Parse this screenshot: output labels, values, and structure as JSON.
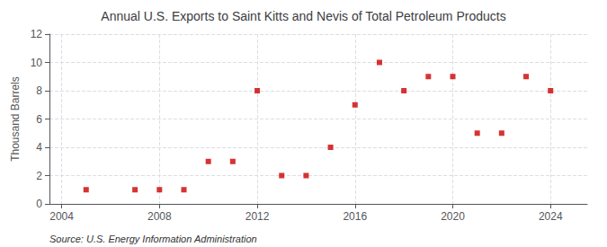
{
  "chart_data": {
    "type": "scatter",
    "title": "Annual U.S. Exports to Saint Kitts and Nevis of Total Petroleum Products",
    "ylabel": "Thousand Barrels",
    "source": "Source: U.S. Energy Information Administration",
    "x": [
      2005,
      2007,
      2008,
      2009,
      2010,
      2011,
      2012,
      2013,
      2014,
      2015,
      2016,
      2017,
      2018,
      2019,
      2020,
      2021,
      2022,
      2023,
      2024
    ],
    "values": [
      1,
      1,
      1,
      1,
      3,
      3,
      8,
      2,
      2,
      4,
      7,
      10,
      8,
      9,
      9,
      5,
      5,
      9,
      8
    ],
    "color": "#cc0000",
    "marker": "square",
    "xlim": [
      2003.5,
      2025.5
    ],
    "xticks": [
      2004,
      2008,
      2012,
      2016,
      2020,
      2024
    ],
    "ylim": [
      0,
      12
    ],
    "yticks": [
      0,
      2,
      4,
      6,
      8,
      10,
      12
    ],
    "grid": true
  }
}
